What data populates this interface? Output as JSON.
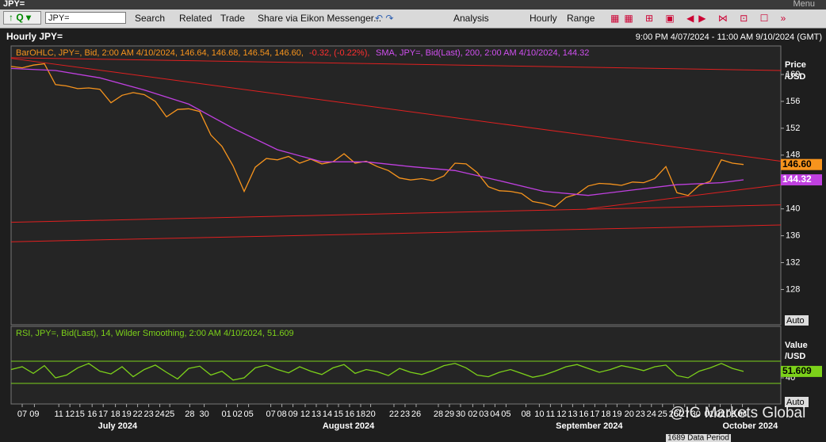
{
  "window": {
    "title": "JPY=",
    "menu": "Menu"
  },
  "toolbar": {
    "ric": "JPY=",
    "search": "Search",
    "related": "Related",
    "trade": "Trade",
    "share": "Share via Eikon Messenger...",
    "analysis": "Analysis",
    "interval": "Hourly",
    "range": "Range"
  },
  "header": {
    "title": "Hourly JPY=",
    "range": "9:00 PM 4/07/2024 - 11:00 AM 9/10/2024 (GMT)"
  },
  "chart_data": [
    {
      "type": "line",
      "legend": {
        "price": "BarOHLC, JPY=, Bid, 2:00 AM 4/10/2024, 146.64, 146.68, 146.54, 146.60,",
        "change": "-0.32, (-0.22%),",
        "sma": "SMA, JPY=, Bid(Last), 200, 2:00 AM 4/10/2024, 144.32"
      },
      "y_label": [
        "Price",
        "/USD"
      ],
      "auto": "Auto",
      "xlim": [
        0,
        69.36
      ],
      "ylim": [
        122.75,
        164.25
      ],
      "yticks": [
        128,
        132,
        136,
        140,
        148,
        152,
        156,
        160
      ],
      "series": [
        {
          "color": "#f7941d",
          "last_label": "146.60",
          "values": [
            161.2,
            161.0,
            161.4,
            161.6,
            158.5,
            158.3,
            157.9,
            158.0,
            157.8,
            155.8,
            156.9,
            157.3,
            157.0,
            156.0,
            153.7,
            154.8,
            154.9,
            154.5,
            151.0,
            149.3,
            146.4,
            142.6,
            146.2,
            147.5,
            147.3,
            147.8,
            146.8,
            147.4,
            146.7,
            147.0,
            148.2,
            146.8,
            147.1,
            146.3,
            145.7,
            144.6,
            144.3,
            144.5,
            144.2,
            144.9,
            146.8,
            146.7,
            145.4,
            143.3,
            142.7,
            142.6,
            142.3,
            141.1,
            140.8,
            140.3,
            141.7,
            142.2,
            143.4,
            143.8,
            143.7,
            143.5,
            144.0,
            143.9,
            144.5,
            146.3,
            142.4,
            142.0,
            143.5,
            144.1,
            147.3,
            146.8,
            146.6
          ]
        },
        {
          "color": "#c040e0",
          "x": [
            0,
            4,
            8,
            12,
            16,
            20,
            24,
            28,
            32,
            36,
            40,
            44,
            48,
            52,
            56,
            60,
            64,
            66
          ],
          "values": [
            160.9,
            160.6,
            159.5,
            157.7,
            155.6,
            152.0,
            148.8,
            147.0,
            147.0,
            146.3,
            145.7,
            144.2,
            142.6,
            142.0,
            142.8,
            143.6,
            143.9,
            144.32
          ]
        }
      ],
      "trendlines": [
        {
          "x": [
            0,
            69.36
          ],
          "values": [
            162.5,
            160.6
          ]
        },
        {
          "x": [
            0,
            69.36
          ],
          "values": [
            162.4,
            147.1
          ]
        },
        {
          "x": [
            0,
            69.36
          ],
          "values": [
            138.0,
            140.6
          ]
        },
        {
          "x": [
            0,
            69.36
          ],
          "values": [
            135.1,
            137.6
          ]
        },
        {
          "x": [
            51.9,
            69.36
          ],
          "values": [
            140.0,
            143.6
          ]
        }
      ],
      "trendline_color": "#e02020"
    },
    {
      "type": "line",
      "legend": "RSI, JPY=, Bid(Last), 14, Wilder Smoothing, 2:00 AM 4/10/2024, 51.609",
      "y_label": [
        "Value",
        "/USD"
      ],
      "auto": "Auto",
      "xlim": [
        0,
        69.36
      ],
      "ylim": [
        -7.1,
        132.9
      ],
      "yticks": [
        40
      ],
      "bands": [
        30,
        70
      ],
      "series": [
        {
          "color": "#7cd11a",
          "values": [
            55,
            60,
            48,
            62,
            40,
            45,
            58,
            66,
            52,
            47,
            60,
            42,
            55,
            63,
            50,
            38,
            57,
            61,
            45,
            52,
            36,
            40,
            58,
            63,
            55,
            49,
            60,
            52,
            46,
            58,
            64,
            48,
            55,
            51,
            44,
            57,
            50,
            46,
            53,
            62,
            66,
            58,
            45,
            42,
            50,
            55,
            48,
            41,
            45,
            52,
            60,
            64,
            57,
            50,
            55,
            62,
            58,
            53,
            60,
            63,
            44,
            40,
            52,
            58,
            66,
            57,
            51.609
          ]
        }
      ],
      "xticks": [
        {
          "value": 1,
          "label": "07"
        },
        {
          "value": 2.1,
          "label": "09"
        },
        {
          "value": 4.3,
          "label": "11"
        },
        {
          "value": 5.3,
          "label": "12"
        },
        {
          "value": 6.2,
          "label": "15"
        },
        {
          "value": 7.3,
          "label": "16"
        },
        {
          "value": 8.3,
          "label": "17"
        },
        {
          "value": 9.4,
          "label": "18"
        },
        {
          "value": 10.4,
          "label": "19"
        },
        {
          "value": 11.4,
          "label": "22"
        },
        {
          "value": 12.4,
          "label": "23"
        },
        {
          "value": 13.4,
          "label": "24"
        },
        {
          "value": 14.3,
          "label": "25"
        },
        {
          "value": 16.1,
          "label": "28"
        },
        {
          "value": 17.4,
          "label": "30"
        },
        {
          "value": 19.4,
          "label": "01"
        },
        {
          "value": 20.4,
          "label": "02"
        },
        {
          "value": 21.4,
          "label": "05"
        },
        {
          "value": 23.4,
          "label": "07"
        },
        {
          "value": 24.4,
          "label": "08"
        },
        {
          "value": 25.4,
          "label": "09"
        },
        {
          "value": 26.5,
          "label": "12"
        },
        {
          "value": 27.5,
          "label": "13"
        },
        {
          "value": 28.5,
          "label": "14"
        },
        {
          "value": 29.5,
          "label": "15"
        },
        {
          "value": 30.5,
          "label": "16"
        },
        {
          "value": 31.5,
          "label": "18"
        },
        {
          "value": 32.4,
          "label": "20"
        },
        {
          "value": 34.5,
          "label": "22"
        },
        {
          "value": 35.5,
          "label": "23"
        },
        {
          "value": 36.5,
          "label": "26"
        },
        {
          "value": 38.5,
          "label": "28"
        },
        {
          "value": 39.5,
          "label": "29"
        },
        {
          "value": 40.5,
          "label": "30"
        },
        {
          "value": 41.6,
          "label": "02"
        },
        {
          "value": 42.6,
          "label": "03"
        },
        {
          "value": 43.6,
          "label": "04"
        },
        {
          "value": 44.6,
          "label": "05"
        },
        {
          "value": 46.4,
          "label": "08"
        },
        {
          "value": 47.6,
          "label": "10"
        },
        {
          "value": 48.6,
          "label": "11"
        },
        {
          "value": 49.6,
          "label": "12"
        },
        {
          "value": 50.6,
          "label": "13"
        },
        {
          "value": 51.6,
          "label": "16"
        },
        {
          "value": 52.6,
          "label": "17"
        },
        {
          "value": 53.6,
          "label": "18"
        },
        {
          "value": 54.6,
          "label": "19"
        },
        {
          "value": 55.7,
          "label": "20"
        },
        {
          "value": 56.7,
          "label": "23"
        },
        {
          "value": 57.7,
          "label": "24"
        },
        {
          "value": 58.7,
          "label": "25"
        },
        {
          "value": 59.7,
          "label": "26"
        },
        {
          "value": 60.7,
          "label": "27"
        },
        {
          "value": 61.7,
          "label": "30"
        },
        {
          "value": 62.9,
          "label": "01"
        },
        {
          "value": 63.9,
          "label": "02"
        },
        {
          "value": 64.9,
          "label": "03"
        },
        {
          "value": 65.9,
          "label": "04"
        }
      ],
      "month_ticks": [
        {
          "value": 9.6,
          "label": "July 2024"
        },
        {
          "value": 30.4,
          "label": "August 2024"
        },
        {
          "value": 52.1,
          "label": "September 2024"
        },
        {
          "value": 66.6,
          "label": "October 2024"
        }
      ],
      "period": "1689 Data Period"
    }
  ],
  "watermark": "@IC Markets Global"
}
